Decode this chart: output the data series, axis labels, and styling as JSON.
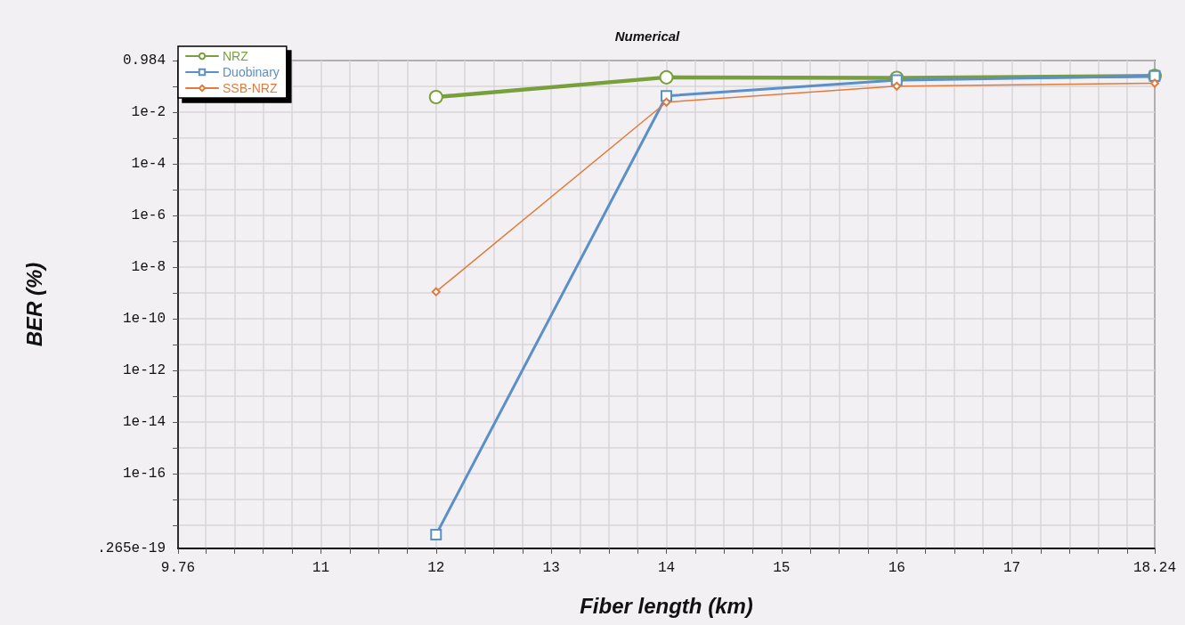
{
  "chart_data": {
    "type": "line",
    "title": "Numerical",
    "xlabel": "Fiber length (km)",
    "ylabel": "BER (%)",
    "x": [
      12,
      14,
      16,
      18.24
    ],
    "series": [
      {
        "name": "NRZ",
        "color": "#77a03c",
        "marker": "circle",
        "values": [
          0.038,
          0.22,
          0.21,
          0.25
        ]
      },
      {
        "name": "Duobinary",
        "color": "#5a8fc8",
        "marker": "square",
        "values": [
          4.3e-19,
          0.042,
          0.17,
          0.25
        ]
      },
      {
        "name": "SSB-NRZ",
        "color": "#e07b3c",
        "marker": "diamond",
        "values": [
          1.1e-09,
          0.024,
          0.1,
          0.13
        ]
      }
    ],
    "log": "y",
    "grid": true,
    "legend": "top left",
    "line_style": "solid",
    "xlim": [
      9.76,
      18.24
    ],
    "xticks": [
      9.76,
      {
        "value": 10,
        "label": null
      },
      {
        "value": 10.25,
        "label": null
      },
      {
        "value": 10.5,
        "label": null
      },
      {
        "value": 10.75,
        "label": null
      },
      11,
      {
        "value": 11.25,
        "label": null
      },
      {
        "value": 11.5,
        "label": null
      },
      {
        "value": 11.75,
        "label": null
      },
      12,
      {
        "value": 12.25,
        "label": null
      },
      {
        "value": 12.5,
        "label": null
      },
      {
        "value": 12.75,
        "label": null
      },
      13,
      {
        "value": 13.25,
        "label": null
      },
      {
        "value": 13.5,
        "label": null
      },
      {
        "value": 13.75,
        "label": null
      },
      14,
      {
        "value": 14.25,
        "label": null
      },
      {
        "value": 14.5,
        "label": null
      },
      {
        "value": 14.75,
        "label": null
      },
      15,
      {
        "value": 15.25,
        "label": null
      },
      {
        "value": 15.5,
        "label": null
      },
      {
        "value": 15.75,
        "label": null
      },
      16,
      {
        "value": 16.25,
        "label": null
      },
      {
        "value": 16.5,
        "label": null
      },
      {
        "value": 16.75,
        "label": null
      },
      17,
      {
        "value": 17.25,
        "label": null
      },
      {
        "value": 17.5,
        "label": null
      },
      {
        "value": 17.75,
        "label": null
      },
      {
        "value": 18,
        "label": null
      },
      18.24
    ],
    "ylim": [
      1.265e-19,
      0.984
    ],
    "yticks": [
      {
        "value": 1.265e-19,
        "label": ".265e-19"
      },
      {
        "value": 1e-18,
        "label": null
      },
      {
        "value": 1e-17,
        "label": null
      },
      {
        "value": 1e-16,
        "label": "1e-16"
      },
      {
        "value": 1e-15,
        "label": null
      },
      {
        "value": 1e-14,
        "label": "1e-14"
      },
      {
        "value": 1e-13,
        "label": null
      },
      {
        "value": 1e-12,
        "label": "1e-12"
      },
      {
        "value": 1e-11,
        "label": null
      },
      {
        "value": 1e-10,
        "label": "1e-10"
      },
      {
        "value": 1e-09,
        "label": null
      },
      {
        "value": 1e-08,
        "label": "1e-8"
      },
      {
        "value": 1e-07,
        "label": null
      },
      {
        "value": 1e-06,
        "label": "1e-6"
      },
      {
        "value": 1e-05,
        "label": null
      },
      {
        "value": 0.0001,
        "label": "1e-4"
      },
      {
        "value": 0.001,
        "label": null
      },
      {
        "value": 0.01,
        "label": "1e-2"
      },
      {
        "value": 0.1,
        "label": null
      },
      0.984
    ]
  }
}
